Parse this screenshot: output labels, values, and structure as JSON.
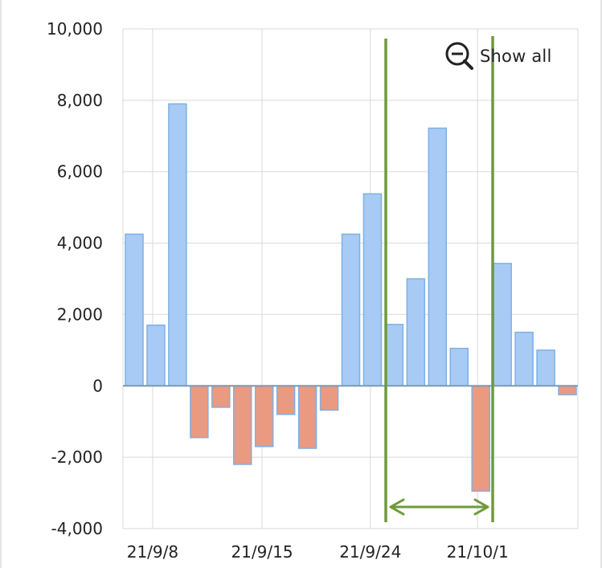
{
  "chart_data": {
    "type": "bar",
    "x_tick_labels": [
      "21/9/8",
      "21/9/15",
      "21/9/24",
      "21/10/1"
    ],
    "values": [
      4250,
      1700,
      7900,
      -1450,
      -600,
      -2200,
      -1700,
      -800,
      -1750,
      -680,
      4250,
      5380,
      1720,
      3000,
      7220,
      1050,
      -2950,
      3430,
      1500,
      1000,
      -250
    ],
    "ylim": [
      -4000,
      10000
    ],
    "yticks": [
      -4000,
      -2000,
      0,
      2000,
      4000,
      6000,
      8000,
      10000
    ],
    "ytick_labels": [
      "-4,000",
      "-2,000",
      "0",
      "2,000",
      "4,000",
      "6,000",
      "8,000",
      "10,000"
    ],
    "grid": true,
    "colors": {
      "positive_fill": "#a7cbf5",
      "positive_stroke": "#7eb0e4",
      "negative_fill": "#e99a81",
      "negative_stroke": "#7eb0e4",
      "selection": "#6e9a3c",
      "grid": "#d9d9d9",
      "axis_zero": "#7c99b5"
    },
    "selection_range": {
      "start_bar": 12,
      "end_bar": 16
    }
  },
  "toolbar": {
    "show_all_label": "Show all",
    "show_all_icon": "zoom-out-icon"
  }
}
